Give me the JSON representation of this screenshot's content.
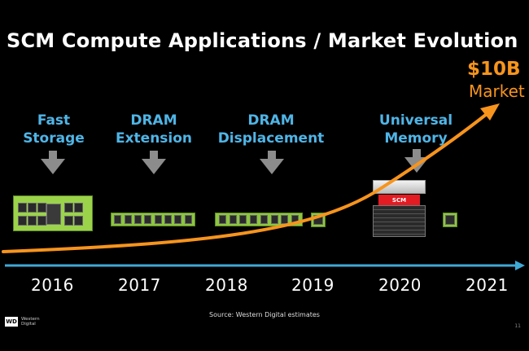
{
  "title": "SCM Compute Applications / Market Evolution",
  "market": {
    "value": "$10B",
    "label": "Market"
  },
  "phases": [
    {
      "line1": "Fast",
      "line2": "Storage"
    },
    {
      "line1": "DRAM",
      "line2": "Extension"
    },
    {
      "line1": "DRAM",
      "line2": "Displacement"
    },
    {
      "line1": "Universal",
      "line2": "Memory"
    }
  ],
  "years": [
    "2016",
    "2017",
    "2018",
    "2019",
    "2020",
    "2021"
  ],
  "server_label": "SCM",
  "source": "Source:  Western Digital estimates",
  "page_number": "11",
  "logo": {
    "badge": "WD",
    "line1": "Western",
    "line2": "Digital"
  },
  "colors": {
    "curve": "#f7941d",
    "timeline": "#3fa9d6",
    "phase_text": "#4fb5e6",
    "arrow": "#8c8c8c",
    "memory": "#8cc63f",
    "scm_label": "#e31b23"
  },
  "icons": [
    "down-arrow-icon",
    "pcie-card-icon",
    "dimm-module-icon",
    "memory-chip-icon",
    "server-icon",
    "curve-arrowhead-icon",
    "timeline-arrowhead-icon"
  ]
}
